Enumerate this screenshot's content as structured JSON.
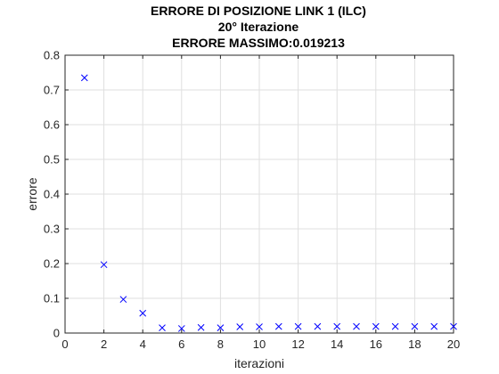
{
  "chart_data": {
    "type": "scatter",
    "title": "ERRORE DI POSIZIONE LINK 1 (ILC)",
    "subtitle": "20° Iterazione",
    "subtitle2": "ERRORE MASSIMO:0.019213",
    "xlabel": "iterazioni",
    "ylabel": "errore",
    "xlim": [
      0,
      20
    ],
    "ylim": [
      0,
      0.8
    ],
    "xticks": [
      "0",
      "2",
      "4",
      "6",
      "8",
      "10",
      "12",
      "14",
      "16",
      "18",
      "20"
    ],
    "yticks": [
      "0",
      "0.1",
      "0.2",
      "0.3",
      "0.4",
      "0.5",
      "0.6",
      "0.7",
      "0.8"
    ],
    "grid": true,
    "marker": "x",
    "marker_color": "#0000ff",
    "x": [
      1,
      2,
      3,
      4,
      5,
      6,
      7,
      8,
      9,
      10,
      11,
      12,
      13,
      14,
      15,
      16,
      17,
      18,
      19,
      20
    ],
    "y": [
      0.735,
      0.197,
      0.097,
      0.057,
      0.015,
      0.013,
      0.016,
      0.015,
      0.018,
      0.018,
      0.019,
      0.019,
      0.019,
      0.019,
      0.019,
      0.019,
      0.019,
      0.019,
      0.019,
      0.019
    ]
  }
}
